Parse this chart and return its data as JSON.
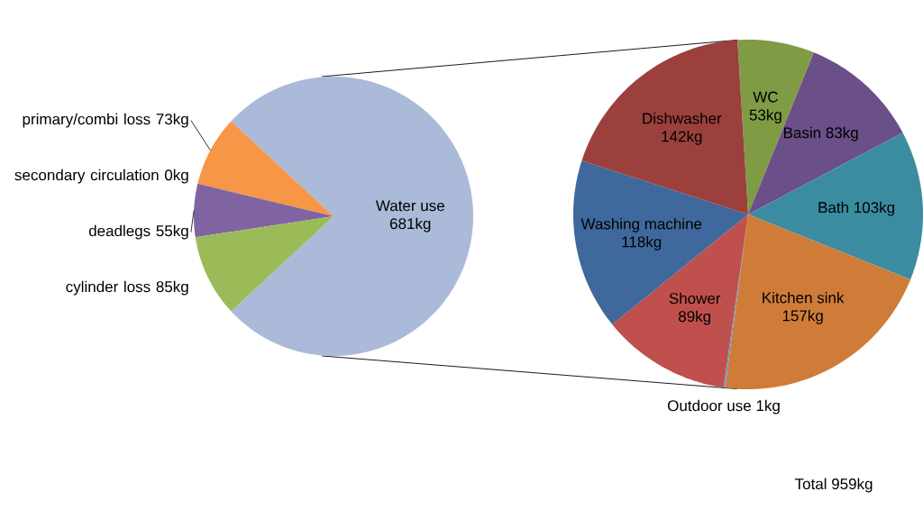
{
  "chart_data": [
    {
      "type": "pie",
      "categories": [
        "Water use",
        "primary/combi loss",
        "secondary circulation",
        "deadlegs",
        "cylinder loss"
      ],
      "values": [
        681,
        73,
        0,
        55,
        85
      ],
      "value_labels": [
        "681kg",
        "73kg",
        "0kg",
        "55kg",
        "85kg"
      ],
      "colors": [
        "#aabad8",
        "#f79646",
        "#4bacc6",
        "#8064a2",
        "#9bbb59"
      ]
    },
    {
      "type": "pie",
      "categories": [
        "WC",
        "Basin",
        "Bath",
        "Kitchen sink",
        "Outdoor use",
        "Shower",
        "Washing machine",
        "Dishwasher"
      ],
      "values": [
        53,
        83,
        103,
        157,
        1,
        89,
        118,
        142
      ],
      "value_labels": [
        "53kg",
        "83kg",
        "103kg",
        "157kg",
        "1kg",
        "89kg",
        "118kg",
        "142kg"
      ],
      "colors": [
        "#7f9c45",
        "#6a4f88",
        "#3b8ca1",
        "#d07c39",
        "#4f9fd9",
        "#c0504d",
        "#3f699c",
        "#9c403d"
      ],
      "annotations": [
        "Total 959kg"
      ]
    }
  ]
}
